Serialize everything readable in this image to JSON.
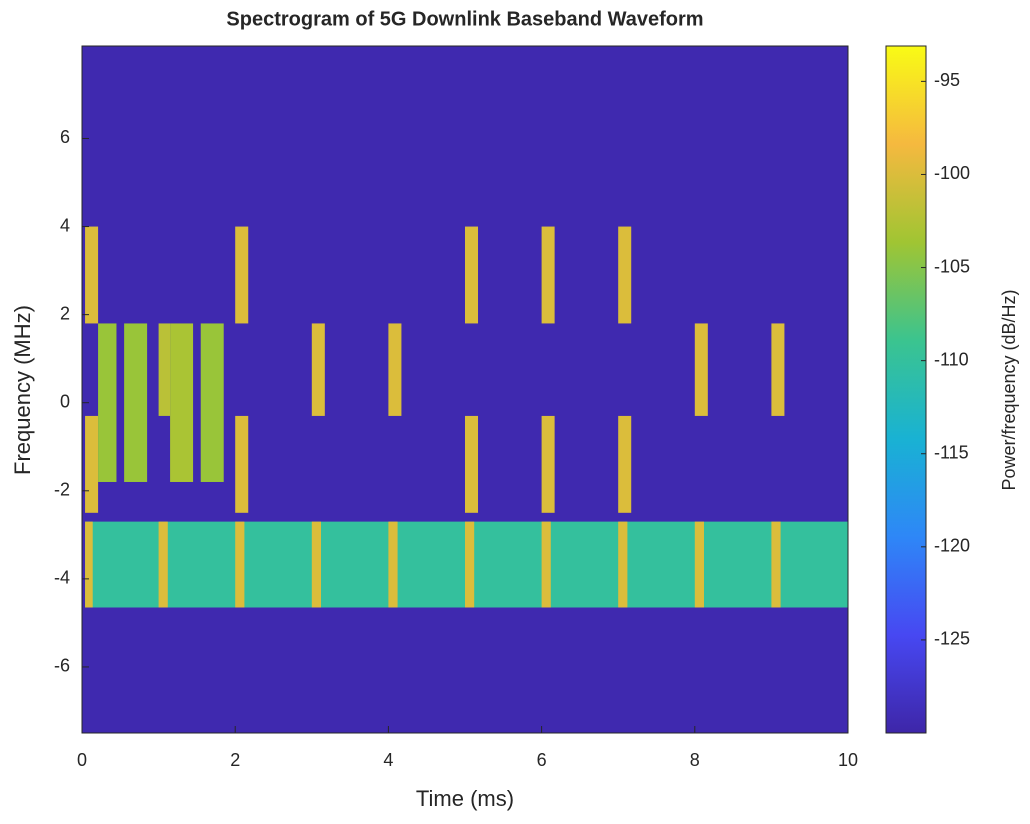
{
  "chart_data": {
    "type": "spectrogram",
    "title": "Spectrogram of 5G Downlink Baseband Waveform",
    "xlabel": "Time (ms)",
    "ylabel": "Frequency (MHz)",
    "colorbar_label": "Power/frequency (dB/Hz)",
    "xlim": [
      0,
      10
    ],
    "xticks": [
      0,
      2,
      4,
      6,
      8,
      10
    ],
    "ylim": [
      -7.5,
      8.1
    ],
    "yticks": [
      -6,
      -4,
      -2,
      0,
      2,
      4,
      6
    ],
    "clim": [
      -130,
      -93.1
    ],
    "cticks": [
      -125,
      -120,
      -115,
      -110,
      -105,
      -100,
      -95
    ],
    "colormap": [
      "#3e26a8",
      "#4748f2",
      "#2e87f7",
      "#19b2d3",
      "#3bc48f",
      "#a0c533",
      "#f5b93f",
      "#f9fb15"
    ],
    "background": -129.5,
    "regions": [
      {
        "x": [
          0.04,
          10
        ],
        "y": [
          -4.65,
          -2.7
        ],
        "value": -110
      },
      {
        "x": [
          0.04,
          0.14
        ],
        "y": [
          -4.65,
          -2.7
        ],
        "value": -100
      },
      {
        "x": [
          1.0,
          1.12
        ],
        "y": [
          -4.65,
          -2.7
        ],
        "value": -100
      },
      {
        "x": [
          2.0,
          2.12
        ],
        "y": [
          -4.65,
          -2.7
        ],
        "value": -100
      },
      {
        "x": [
          3.0,
          3.12
        ],
        "y": [
          -4.65,
          -2.7
        ],
        "value": -100
      },
      {
        "x": [
          4.0,
          4.12
        ],
        "y": [
          -4.65,
          -2.7
        ],
        "value": -100
      },
      {
        "x": [
          5.0,
          5.12
        ],
        "y": [
          -4.65,
          -2.7
        ],
        "value": -100
      },
      {
        "x": [
          6.0,
          6.12
        ],
        "y": [
          -4.65,
          -2.7
        ],
        "value": -100
      },
      {
        "x": [
          7.0,
          7.12
        ],
        "y": [
          -4.65,
          -2.7
        ],
        "value": -100
      },
      {
        "x": [
          8.0,
          8.12
        ],
        "y": [
          -4.65,
          -2.7
        ],
        "value": -100
      },
      {
        "x": [
          9.0,
          9.12
        ],
        "y": [
          -4.65,
          -2.7
        ],
        "value": -100
      },
      {
        "x": [
          0.04,
          0.21
        ],
        "y": [
          1.8,
          4.0
        ],
        "value": -100
      },
      {
        "x": [
          2.0,
          2.17
        ],
        "y": [
          1.8,
          4.0
        ],
        "value": -100
      },
      {
        "x": [
          5.0,
          5.17
        ],
        "y": [
          1.8,
          4.0
        ],
        "value": -100
      },
      {
        "x": [
          6.0,
          6.17
        ],
        "y": [
          1.8,
          4.0
        ],
        "value": -100
      },
      {
        "x": [
          7.0,
          7.17
        ],
        "y": [
          1.8,
          4.0
        ],
        "value": -100
      },
      {
        "x": [
          3.0,
          3.17
        ],
        "y": [
          -0.3,
          1.8
        ],
        "value": -100
      },
      {
        "x": [
          4.0,
          4.17
        ],
        "y": [
          -0.3,
          1.8
        ],
        "value": -100
      },
      {
        "x": [
          8.0,
          8.17
        ],
        "y": [
          -0.3,
          1.8
        ],
        "value": -100
      },
      {
        "x": [
          9.0,
          9.17
        ],
        "y": [
          -0.3,
          1.8
        ],
        "value": -100
      },
      {
        "x": [
          0.04,
          0.21
        ],
        "y": [
          -2.5,
          -0.3
        ],
        "value": -100
      },
      {
        "x": [
          2.0,
          2.17
        ],
        "y": [
          -2.5,
          -0.3
        ],
        "value": -100
      },
      {
        "x": [
          5.0,
          5.17
        ],
        "y": [
          -2.5,
          -0.3
        ],
        "value": -100
      },
      {
        "x": [
          6.0,
          6.17
        ],
        "y": [
          -2.5,
          -0.3
        ],
        "value": -100
      },
      {
        "x": [
          7.0,
          7.17
        ],
        "y": [
          -2.5,
          -0.3
        ],
        "value": -100
      },
      {
        "x": [
          0.21,
          0.45
        ],
        "y": [
          -1.8,
          1.8
        ],
        "value": -104
      },
      {
        "x": [
          0.55,
          0.85
        ],
        "y": [
          -1.8,
          1.8
        ],
        "value": -104
      },
      {
        "x": [
          1.0,
          1.15
        ],
        "y": [
          -0.3,
          1.8
        ],
        "value": -102
      },
      {
        "x": [
          1.15,
          1.45
        ],
        "y": [
          -1.8,
          1.8
        ],
        "value": -103
      },
      {
        "x": [
          1.55,
          1.85
        ],
        "y": [
          -1.8,
          1.8
        ],
        "value": -104
      }
    ]
  }
}
